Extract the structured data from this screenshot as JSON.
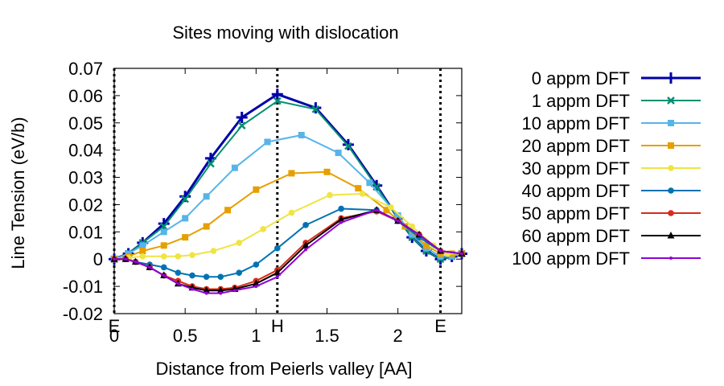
{
  "chart_data": {
    "type": "line",
    "title": "Sites moving with dislocation",
    "xlabel": "Distance from Peierls valley [AA]",
    "ylabel": "Line Tension (eV/b)",
    "xlim": [
      0,
      2.45
    ],
    "ylim": [
      -0.02,
      0.07
    ],
    "xticks": [
      "0",
      "0.5",
      "1",
      "1.5",
      "2"
    ],
    "yticks": [
      "-0.02",
      "-0.01",
      "0",
      "0.01",
      "0.02",
      "0.03",
      "0.04",
      "0.05",
      "0.06",
      "0.07"
    ],
    "vlines": [
      {
        "x": 0.0,
        "label": "E"
      },
      {
        "x": 1.15,
        "label": "H"
      },
      {
        "x": 2.3,
        "label": "E"
      }
    ],
    "grid": false,
    "legend_position": "right",
    "series": [
      {
        "name": "0 appm DFT",
        "color": "#0000aa",
        "marker": "plus",
        "width": 3,
        "points": [
          [
            0,
            0
          ],
          [
            0.1,
            0.002
          ],
          [
            0.2,
            0.006
          ],
          [
            0.35,
            0.013
          ],
          [
            0.5,
            0.023
          ],
          [
            0.68,
            0.037
          ],
          [
            0.9,
            0.052
          ],
          [
            1.15,
            0.0605
          ],
          [
            1.42,
            0.0555
          ],
          [
            1.65,
            0.042
          ],
          [
            1.85,
            0.027
          ],
          [
            2.0,
            0.015
          ],
          [
            2.1,
            0.008
          ],
          [
            2.2,
            0.003
          ],
          [
            2.3,
            0.0
          ],
          [
            2.38,
            0.001
          ],
          [
            2.45,
            0.002
          ]
        ]
      },
      {
        "name": "1 appm DFT",
        "color": "#009070",
        "marker": "x",
        "width": 2,
        "points": [
          [
            0,
            0
          ],
          [
            0.1,
            0.002
          ],
          [
            0.2,
            0.006
          ],
          [
            0.35,
            0.012
          ],
          [
            0.5,
            0.022
          ],
          [
            0.68,
            0.035
          ],
          [
            0.9,
            0.049
          ],
          [
            1.15,
            0.058
          ],
          [
            1.42,
            0.055
          ],
          [
            1.65,
            0.0415
          ],
          [
            1.85,
            0.0265
          ],
          [
            2.0,
            0.015
          ],
          [
            2.1,
            0.008
          ],
          [
            2.2,
            0.003
          ],
          [
            2.3,
            0.0
          ],
          [
            2.38,
            0.001
          ],
          [
            2.45,
            0.002
          ]
        ]
      },
      {
        "name": "10 appm DFT",
        "color": "#56b4e9",
        "marker": "square",
        "width": 2,
        "points": [
          [
            0,
            0
          ],
          [
            0.1,
            0.002
          ],
          [
            0.2,
            0.005
          ],
          [
            0.35,
            0.01
          ],
          [
            0.5,
            0.015
          ],
          [
            0.65,
            0.023
          ],
          [
            0.85,
            0.0335
          ],
          [
            1.08,
            0.043
          ],
          [
            1.32,
            0.0455
          ],
          [
            1.58,
            0.039
          ],
          [
            1.8,
            0.028
          ],
          [
            2.0,
            0.016
          ],
          [
            2.1,
            0.009
          ],
          [
            2.2,
            0.004
          ],
          [
            2.3,
            0.001
          ],
          [
            2.38,
            0.001
          ],
          [
            2.45,
            0.002
          ]
        ]
      },
      {
        "name": "20 appm DFT",
        "color": "#e69f00",
        "marker": "square",
        "width": 2,
        "points": [
          [
            0,
            0
          ],
          [
            0.1,
            0.001
          ],
          [
            0.2,
            0.003
          ],
          [
            0.35,
            0.005
          ],
          [
            0.5,
            0.008
          ],
          [
            0.65,
            0.012
          ],
          [
            0.8,
            0.018
          ],
          [
            1.0,
            0.0255
          ],
          [
            1.25,
            0.0315
          ],
          [
            1.5,
            0.032
          ],
          [
            1.72,
            0.026
          ],
          [
            1.92,
            0.018
          ],
          [
            2.05,
            0.012
          ],
          [
            2.2,
            0.005
          ],
          [
            2.3,
            0.002
          ],
          [
            2.38,
            0.002
          ],
          [
            2.45,
            0.002
          ]
        ]
      },
      {
        "name": "30 appm DFT",
        "color": "#f0e442",
        "marker": "circle",
        "width": 2,
        "points": [
          [
            0,
            0
          ],
          [
            0.1,
            0.0005
          ],
          [
            0.2,
            0.001
          ],
          [
            0.35,
            0.001
          ],
          [
            0.45,
            0.001
          ],
          [
            0.55,
            0.0015
          ],
          [
            0.7,
            0.003
          ],
          [
            0.88,
            0.006
          ],
          [
            1.05,
            0.011
          ],
          [
            1.25,
            0.017
          ],
          [
            1.52,
            0.0235
          ],
          [
            1.75,
            0.024
          ],
          [
            1.95,
            0.019
          ],
          [
            2.1,
            0.012
          ],
          [
            2.25,
            0.005
          ],
          [
            2.35,
            0.002
          ],
          [
            2.45,
            0.002
          ]
        ]
      },
      {
        "name": "40 appm DFT",
        "color": "#0072b2",
        "marker": "circle",
        "width": 2,
        "points": [
          [
            0,
            0
          ],
          [
            0.08,
            0.0
          ],
          [
            0.15,
            -0.001
          ],
          [
            0.25,
            -0.002
          ],
          [
            0.35,
            -0.003
          ],
          [
            0.45,
            -0.005
          ],
          [
            0.55,
            -0.006
          ],
          [
            0.65,
            -0.0065
          ],
          [
            0.75,
            -0.0065
          ],
          [
            0.88,
            -0.005
          ],
          [
            1.0,
            -0.002
          ],
          [
            1.15,
            0.004
          ],
          [
            1.35,
            0.0125
          ],
          [
            1.6,
            0.0185
          ],
          [
            1.85,
            0.018
          ],
          [
            2.0,
            0.014
          ],
          [
            2.15,
            0.008
          ],
          [
            2.3,
            0.003
          ],
          [
            2.45,
            0.002
          ]
        ]
      },
      {
        "name": "50 appm DFT",
        "color": "#d62c1a",
        "marker": "circle",
        "width": 2,
        "points": [
          [
            0,
            0
          ],
          [
            0.08,
            0.0
          ],
          [
            0.15,
            -0.001
          ],
          [
            0.25,
            -0.003
          ],
          [
            0.35,
            -0.006
          ],
          [
            0.45,
            -0.008
          ],
          [
            0.55,
            -0.01
          ],
          [
            0.65,
            -0.011
          ],
          [
            0.75,
            -0.011
          ],
          [
            0.85,
            -0.0105
          ],
          [
            1.0,
            -0.008
          ],
          [
            1.15,
            -0.004
          ],
          [
            1.35,
            0.006
          ],
          [
            1.6,
            0.015
          ],
          [
            1.85,
            0.0175
          ],
          [
            2.0,
            0.014
          ],
          [
            2.15,
            0.009
          ],
          [
            2.3,
            0.003
          ],
          [
            2.45,
            0.002
          ]
        ]
      },
      {
        "name": "60 appm DFT",
        "color": "#000000",
        "marker": "triangle",
        "width": 2,
        "points": [
          [
            0,
            0
          ],
          [
            0.08,
            0.0
          ],
          [
            0.15,
            -0.001
          ],
          [
            0.25,
            -0.003
          ],
          [
            0.35,
            -0.006
          ],
          [
            0.45,
            -0.009
          ],
          [
            0.55,
            -0.0105
          ],
          [
            0.65,
            -0.0115
          ],
          [
            0.75,
            -0.0115
          ],
          [
            0.85,
            -0.011
          ],
          [
            1.0,
            -0.009
          ],
          [
            1.15,
            -0.005
          ],
          [
            1.35,
            0.005
          ],
          [
            1.6,
            0.0145
          ],
          [
            1.85,
            0.018
          ],
          [
            2.0,
            0.014
          ],
          [
            2.15,
            0.009
          ],
          [
            2.3,
            0.003
          ],
          [
            2.45,
            0.002
          ]
        ]
      },
      {
        "name": "100 appm DFT",
        "color": "#9400d3",
        "marker": "dot",
        "width": 2,
        "points": [
          [
            0,
            0
          ],
          [
            0.08,
            0.0
          ],
          [
            0.15,
            -0.001
          ],
          [
            0.25,
            -0.003
          ],
          [
            0.35,
            -0.006
          ],
          [
            0.45,
            -0.009
          ],
          [
            0.55,
            -0.011
          ],
          [
            0.65,
            -0.0125
          ],
          [
            0.75,
            -0.0125
          ],
          [
            0.85,
            -0.0115
          ],
          [
            1.0,
            -0.01
          ],
          [
            1.15,
            -0.0065
          ],
          [
            1.35,
            0.0035
          ],
          [
            1.6,
            0.0135
          ],
          [
            1.85,
            0.018
          ],
          [
            2.0,
            0.014
          ],
          [
            2.15,
            0.009
          ],
          [
            2.3,
            0.003
          ],
          [
            2.45,
            0.002
          ]
        ]
      }
    ]
  }
}
